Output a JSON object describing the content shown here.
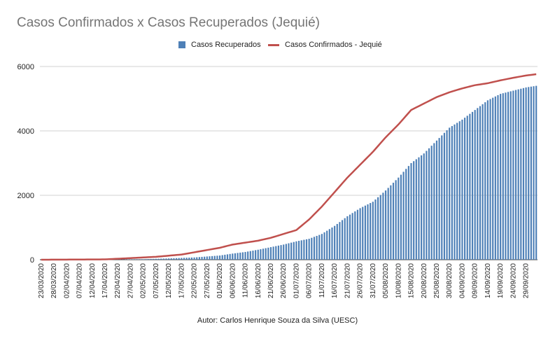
{
  "chart_data": {
    "type": "bar",
    "title": "Casos Confirmados x Casos Recuperados (Jequié)",
    "caption": "Autor: Carlos Henrique Souza da Silva  (UESC)",
    "ylim": [
      0,
      6000
    ],
    "yticks": [
      0,
      2000,
      4000,
      6000
    ],
    "grid": true,
    "legend_position": "top-center",
    "colors": {
      "recovered": "#4e80b7",
      "confirmed": "#c0504d"
    },
    "start_date": "2020-03-23",
    "end_date": "2020-10-03",
    "x_tick_labels": [
      "23/03/2020",
      "28/03/2020",
      "02/04/2020",
      "07/04/2020",
      "12/04/2020",
      "17/04/2020",
      "22/04/2020",
      "27/04/2020",
      "02/05/2020",
      "07/05/2020",
      "12/05/2020",
      "17/05/2020",
      "22/05/2020",
      "27/05/2020",
      "01/06/2020",
      "06/06/2020",
      "11/06/2020",
      "16/06/2020",
      "21/06/2020",
      "26/06/2020",
      "01/07/2020",
      "06/07/2020",
      "11/07/2020",
      "16/07/2020",
      "21/07/2020",
      "26/07/2020",
      "31/07/2020",
      "05/08/2020",
      "10/08/2020",
      "15/08/2020",
      "20/08/2020",
      "25/08/2020",
      "30/08/2020",
      "04/09/2020",
      "09/09/2020",
      "14/09/2020",
      "19/09/2020",
      "24/09/2020",
      "29/09/2020"
    ],
    "series": [
      {
        "name": "Casos Recuperados",
        "kind": "bar",
        "points": [
          [
            "2020-03-23",
            0
          ],
          [
            "2020-04-17",
            5
          ],
          [
            "2020-05-02",
            15
          ],
          [
            "2020-05-12",
            40
          ],
          [
            "2020-05-22",
            70
          ],
          [
            "2020-06-01",
            130
          ],
          [
            "2020-06-06",
            190
          ],
          [
            "2020-06-11",
            240
          ],
          [
            "2020-06-16",
            310
          ],
          [
            "2020-06-21",
            390
          ],
          [
            "2020-06-26",
            470
          ],
          [
            "2020-07-01",
            570
          ],
          [
            "2020-07-06",
            650
          ],
          [
            "2020-07-11",
            800
          ],
          [
            "2020-07-16",
            1050
          ],
          [
            "2020-07-21",
            1350
          ],
          [
            "2020-07-26",
            1600
          ],
          [
            "2020-07-31",
            1800
          ],
          [
            "2020-08-05",
            2150
          ],
          [
            "2020-08-10",
            2550
          ],
          [
            "2020-08-15",
            3000
          ],
          [
            "2020-08-20",
            3300
          ],
          [
            "2020-08-25",
            3700
          ],
          [
            "2020-08-30",
            4100
          ],
          [
            "2020-09-04",
            4350
          ],
          [
            "2020-09-09",
            4650
          ],
          [
            "2020-09-14",
            4950
          ],
          [
            "2020-09-19",
            5150
          ],
          [
            "2020-09-24",
            5250
          ],
          [
            "2020-09-29",
            5350
          ],
          [
            "2020-10-03",
            5400
          ]
        ]
      },
      {
        "name": "Casos Confirmados - Jequié",
        "kind": "line",
        "points": [
          [
            "2020-03-23",
            0
          ],
          [
            "2020-04-17",
            10
          ],
          [
            "2020-04-27",
            50
          ],
          [
            "2020-05-07",
            90
          ],
          [
            "2020-05-17",
            160
          ],
          [
            "2020-05-22",
            230
          ],
          [
            "2020-06-01",
            370
          ],
          [
            "2020-06-06",
            470
          ],
          [
            "2020-06-11",
            530
          ],
          [
            "2020-06-16",
            590
          ],
          [
            "2020-06-21",
            680
          ],
          [
            "2020-06-26",
            800
          ],
          [
            "2020-07-01",
            920
          ],
          [
            "2020-07-06",
            1250
          ],
          [
            "2020-07-11",
            1650
          ],
          [
            "2020-07-16",
            2100
          ],
          [
            "2020-07-21",
            2550
          ],
          [
            "2020-07-26",
            2950
          ],
          [
            "2020-07-31",
            3350
          ],
          [
            "2020-08-05",
            3800
          ],
          [
            "2020-08-10",
            4200
          ],
          [
            "2020-08-15",
            4650
          ],
          [
            "2020-08-20",
            4850
          ],
          [
            "2020-08-25",
            5050
          ],
          [
            "2020-08-30",
            5200
          ],
          [
            "2020-09-04",
            5320
          ],
          [
            "2020-09-09",
            5420
          ],
          [
            "2020-09-14",
            5480
          ],
          [
            "2020-09-19",
            5570
          ],
          [
            "2020-09-24",
            5650
          ],
          [
            "2020-09-29",
            5720
          ],
          [
            "2020-10-03",
            5760
          ]
        ]
      }
    ]
  }
}
